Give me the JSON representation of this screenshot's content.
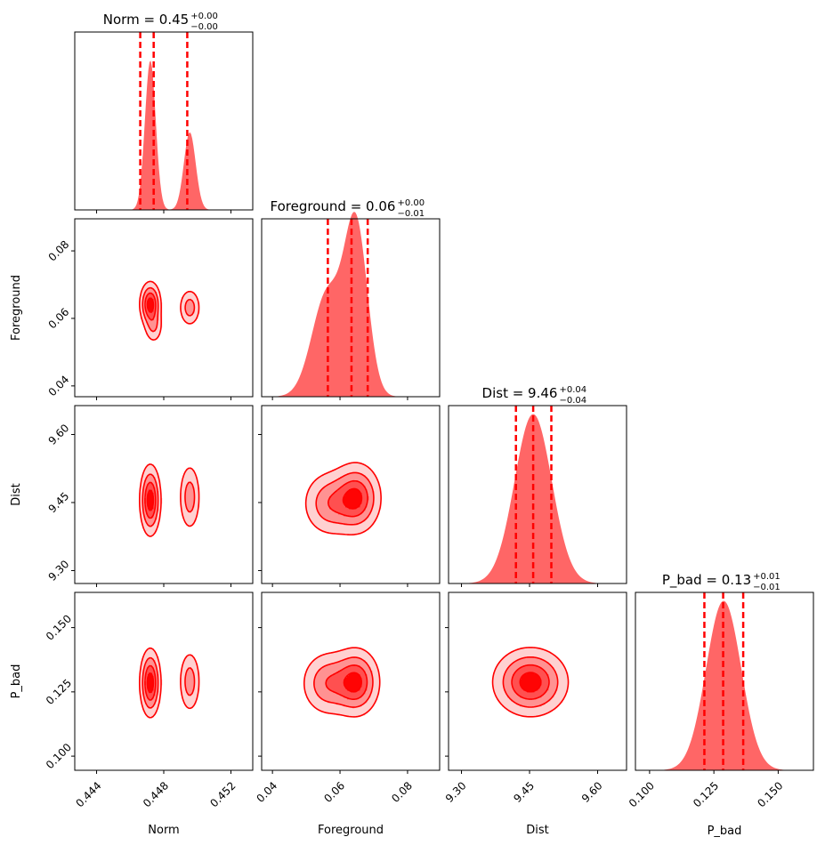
{
  "chart_data": {
    "type": "corner",
    "color": "#ff0000",
    "fill_color": "#ff6666",
    "parameters": [
      {
        "name": "Norm",
        "label": "Norm",
        "title": "Norm = 0.45",
        "title_plus": "+0.00",
        "title_minus": "−0.00",
        "range": [
          0.4427,
          0.4533
        ],
        "ticks": [
          0.444,
          0.448,
          0.452
        ],
        "tick_labels": [
          "0.444",
          "0.448",
          "0.452"
        ],
        "quantiles": [
          0.4466,
          0.4474,
          0.4494
        ],
        "peaks": [
          {
            "mu": 0.4472,
            "sigma": 0.00032,
            "amp": 1.0
          },
          {
            "mu": 0.44955,
            "sigma": 0.00035,
            "amp": 0.52
          }
        ],
        "hist_max": 1.19
      },
      {
        "name": "Foreground",
        "label": "Foreground",
        "title": "Foreground = 0.06",
        "title_plus": "+0.00",
        "title_minus": "−0.01",
        "range": [
          0.0368,
          0.0895
        ],
        "ticks": [
          0.04,
          0.06,
          0.08
        ],
        "tick_labels": [
          "0.04",
          "0.06",
          "0.08"
        ],
        "quantiles": [
          0.0564,
          0.0634,
          0.0682
        ],
        "peaks": [
          {
            "mu": 0.0648,
            "sigma": 0.0034,
            "amp": 1.0
          },
          {
            "mu": 0.0562,
            "sigma": 0.0045,
            "amp": 0.62
          }
        ],
        "hist_max": 1.07
      },
      {
        "name": "Dist",
        "label": "Dist",
        "title": "Dist = 9.46",
        "title_plus": "+0.04",
        "title_minus": "−0.04",
        "range": [
          9.2715,
          9.6637
        ],
        "ticks": [
          9.3,
          9.45,
          9.6
        ],
        "tick_labels": [
          "9.30",
          "9.45",
          "9.60"
        ],
        "quantiles": [
          9.42,
          9.458,
          9.498
        ],
        "peaks": [
          {
            "mu": 9.458,
            "sigma": 0.041,
            "amp": 1.0
          }
        ],
        "hist_max": 1.05
      },
      {
        "name": "P_bad",
        "label": "P_bad",
        "title": "P_bad = 0.13",
        "title_plus": "+0.01",
        "title_minus": "−0.01",
        "range": [
          0.0945,
          0.1637
        ],
        "ticks": [
          0.1,
          0.125,
          0.15
        ],
        "tick_labels": [
          "0.100",
          "0.125",
          "0.150"
        ],
        "quantiles": [
          0.1213,
          0.1286,
          0.1364
        ],
        "peaks": [
          {
            "mu": 0.1288,
            "sigma": 0.0068,
            "amp": 1.0
          }
        ],
        "hist_max": 1.05
      }
    ],
    "contours": {
      "Foreground|Norm": {
        "blobs": [
          {
            "cx": 0.4472,
            "cy": 0.0642,
            "sx": 0.00032,
            "sy": 0.0034,
            "amp": 1.0
          },
          {
            "cx": 0.44955,
            "cy": 0.0632,
            "sx": 0.00034,
            "sy": 0.003,
            "amp": 0.5
          },
          {
            "cx": 0.4474,
            "cy": 0.0575,
            "sx": 0.0003,
            "sy": 0.0028,
            "amp": 0.35
          }
        ]
      },
      "Dist|Norm": {
        "blobs": [
          {
            "cx": 0.4472,
            "cy": 9.455,
            "sx": 0.00032,
            "sy": 0.04,
            "amp": 1.0
          },
          {
            "cx": 0.44955,
            "cy": 9.462,
            "sx": 0.00034,
            "sy": 0.04,
            "amp": 0.5
          }
        ]
      },
      "Dist|Foreground": {
        "blobs": [
          {
            "cx": 0.0648,
            "cy": 9.46,
            "sx": 0.0038,
            "sy": 0.04,
            "amp": 1.0
          },
          {
            "cx": 0.0568,
            "cy": 9.448,
            "sx": 0.0042,
            "sy": 0.038,
            "amp": 0.6
          }
        ]
      },
      "P_bad|Norm": {
        "blobs": [
          {
            "cx": 0.4472,
            "cy": 0.1285,
            "sx": 0.00032,
            "sy": 0.0068,
            "amp": 1.0
          },
          {
            "cx": 0.44955,
            "cy": 0.129,
            "sx": 0.00034,
            "sy": 0.0065,
            "amp": 0.5
          }
        ]
      },
      "P_bad|Foreground": {
        "blobs": [
          {
            "cx": 0.0648,
            "cy": 0.1288,
            "sx": 0.0036,
            "sy": 0.0068,
            "amp": 1.0
          },
          {
            "cx": 0.0565,
            "cy": 0.1283,
            "sx": 0.0042,
            "sy": 0.0066,
            "amp": 0.65
          }
        ]
      },
      "P_bad|Dist": {
        "blobs": [
          {
            "cx": 9.452,
            "cy": 0.1288,
            "sx": 0.042,
            "sy": 0.0068,
            "amp": 1.0
          }
        ]
      }
    }
  }
}
